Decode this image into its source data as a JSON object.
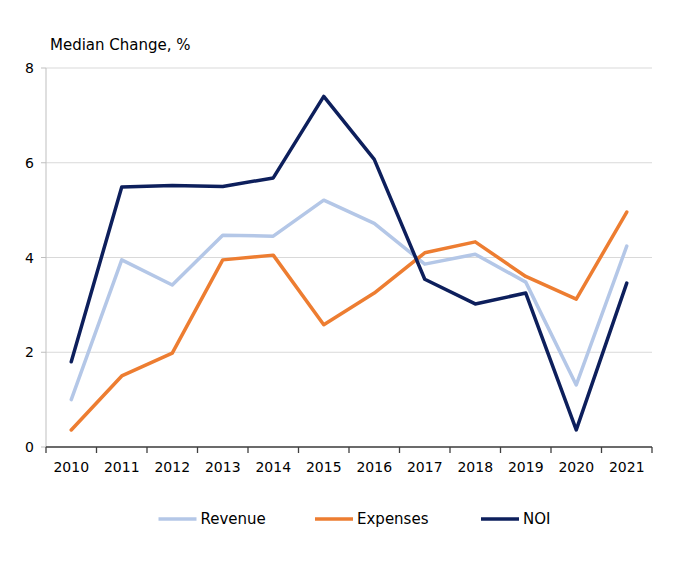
{
  "chart_data": {
    "type": "line",
    "y_label": "Median Change, %",
    "categories": [
      "2010",
      "2011",
      "2012",
      "2013",
      "2014",
      "2015",
      "2016",
      "2017",
      "2018",
      "2019",
      "2020",
      "2021"
    ],
    "series": [
      {
        "name": "Revenue",
        "color": "#b4c7e7",
        "values": [
          1.0,
          3.95,
          3.42,
          4.47,
          4.45,
          5.21,
          4.72,
          3.86,
          4.07,
          3.48,
          1.31,
          4.24
        ]
      },
      {
        "name": "Expenses",
        "color": "#ed7d31",
        "values": [
          0.36,
          1.5,
          1.98,
          3.95,
          4.05,
          2.58,
          3.25,
          4.1,
          4.33,
          3.6,
          3.12,
          4.96
        ]
      },
      {
        "name": "NOI",
        "color": "#0d1f5c",
        "values": [
          1.8,
          5.49,
          5.52,
          5.5,
          5.68,
          7.4,
          6.07,
          3.54,
          3.02,
          3.25,
          0.36,
          3.46
        ]
      }
    ],
    "ylim": [
      0,
      8
    ],
    "yticks": [
      0,
      2,
      4,
      6,
      8
    ],
    "grid": true,
    "legend": "bottom"
  }
}
